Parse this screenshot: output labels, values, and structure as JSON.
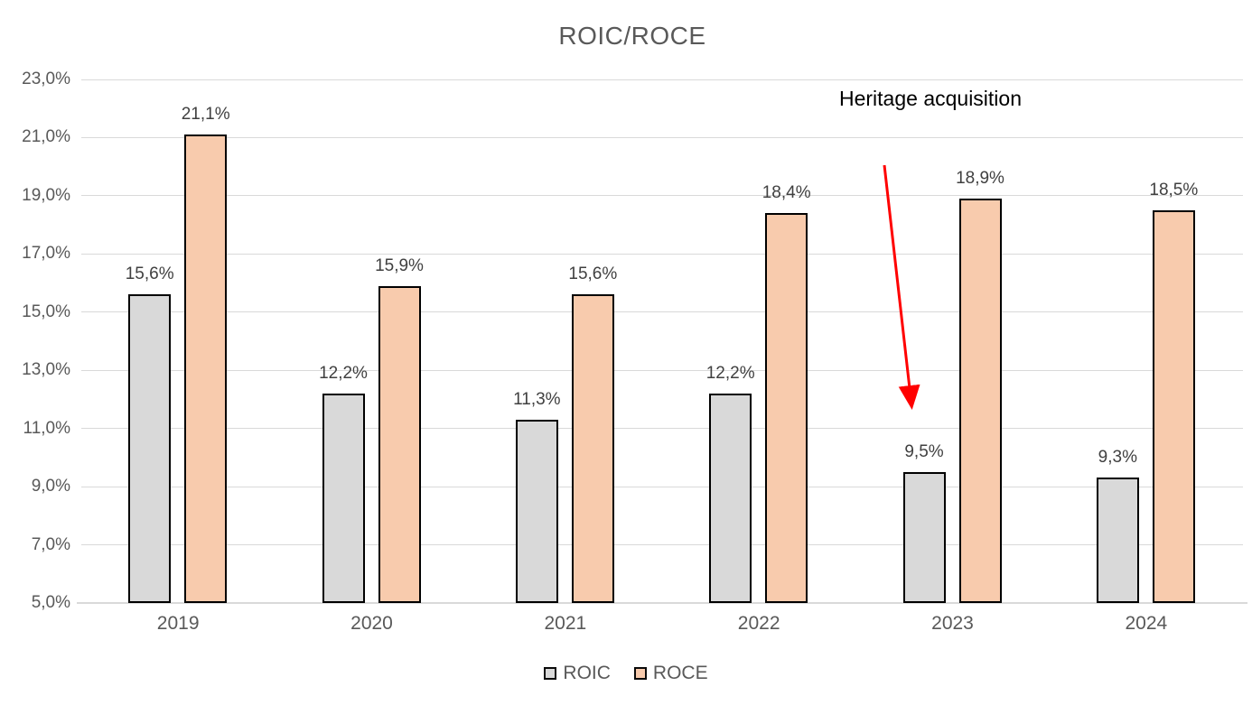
{
  "chart_data": {
    "type": "bar",
    "title": "ROIC/ROCE",
    "categories": [
      "2019",
      "2020",
      "2021",
      "2022",
      "2023",
      "2024"
    ],
    "series": [
      {
        "name": "ROIC",
        "color": "#d9d9d9",
        "border_color": "#000000",
        "values": [
          15.6,
          12.2,
          11.3,
          12.2,
          9.5,
          9.3
        ],
        "labels": [
          "15,6%",
          "12,2%",
          "11,3%",
          "12,2%",
          "9,5%",
          "9,3%"
        ]
      },
      {
        "name": "ROCE",
        "color": "#f8cbad",
        "border_color": "#000000",
        "values": [
          21.1,
          15.9,
          15.6,
          18.4,
          18.9,
          18.5
        ],
        "labels": [
          "21,1%",
          "15,9%",
          "15,6%",
          "18,4%",
          "18,9%",
          "18,5%"
        ]
      }
    ],
    "xlabel": "",
    "ylabel": "",
    "ylim": [
      5,
      23
    ],
    "ytick_step": 2,
    "ytick_labels": [
      "5,0%",
      "7,0%",
      "9,0%",
      "11,0%",
      "13,0%",
      "15,0%",
      "17,0%",
      "19,0%",
      "21,0%",
      "23,0%"
    ],
    "grid": true,
    "legend_position": "bottom",
    "annotation": {
      "text": "Heritage acquisition",
      "target": "2023 ROIC bar",
      "arrow_color": "#ff0000"
    },
    "style_colors": {
      "gridline": "#d9d9d9",
      "axis_text": "#595959",
      "data_label": "#404040",
      "title_text": "#595959",
      "background": "#ffffff"
    }
  }
}
